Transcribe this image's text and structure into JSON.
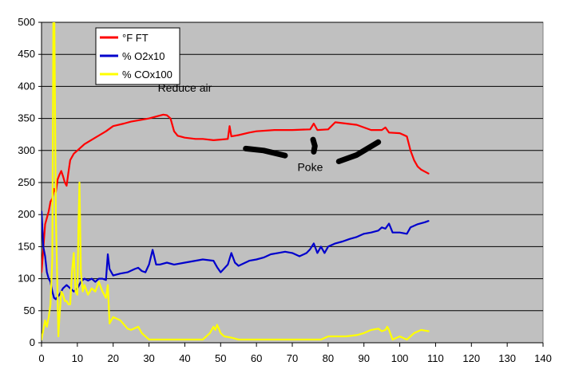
{
  "chart_data": {
    "type": "line",
    "title": "",
    "xlabel": "",
    "ylabel": "",
    "xlim": [
      0,
      140
    ],
    "ylim": [
      0,
      500
    ],
    "xticks": [
      0,
      10,
      20,
      30,
      40,
      50,
      60,
      70,
      80,
      90,
      100,
      110,
      120,
      130,
      140
    ],
    "yticks": [
      0,
      50,
      100,
      150,
      200,
      250,
      300,
      350,
      400,
      450,
      500
    ],
    "grid": {
      "horizontal": true,
      "vertical": false
    },
    "plot_background": "#c0c0c0",
    "legend": {
      "placement": "top-left",
      "box": true
    },
    "annotations": [
      {
        "text": "Reduce air",
        "x": 40,
        "y": 392
      },
      {
        "text": "Poke",
        "x": 75,
        "y": 268
      }
    ],
    "strokes": [
      {
        "color": "#000000",
        "points": [
          [
            57,
            303
          ],
          [
            62,
            300
          ],
          [
            68,
            292
          ]
        ]
      },
      {
        "color": "#000000",
        "points": [
          [
            75.8,
            317
          ],
          [
            76.3,
            307
          ],
          [
            76,
            298
          ]
        ]
      },
      {
        "color": "#000000",
        "points": [
          [
            83,
            283
          ],
          [
            88,
            293
          ],
          [
            94,
            313
          ]
        ]
      }
    ],
    "series": [
      {
        "name": "°F FT",
        "color": "#ff0000",
        "x": [
          0,
          1,
          2,
          2.5,
          3,
          3.5,
          4,
          4.5,
          5,
          5.5,
          6,
          6.5,
          7,
          7.5,
          8,
          9,
          10,
          12,
          15,
          18,
          20,
          23,
          25,
          28,
          30,
          32,
          34,
          35,
          36,
          37,
          38,
          40,
          43,
          45,
          48,
          50,
          52,
          52.5,
          53,
          55,
          58,
          60,
          65,
          70,
          75,
          76,
          77,
          80,
          82,
          85,
          88,
          90,
          92,
          95,
          96,
          97,
          100,
          102,
          103,
          104,
          105,
          106,
          107,
          108
        ],
        "y": [
          110,
          185,
          205,
          220,
          225,
          240,
          235,
          255,
          262,
          268,
          260,
          250,
          245,
          265,
          285,
          295,
          300,
          310,
          320,
          330,
          338,
          342,
          345,
          348,
          350,
          353,
          356,
          355,
          350,
          330,
          323,
          320,
          318,
          318,
          316,
          317,
          318,
          338,
          322,
          324,
          328,
          330,
          332,
          332,
          333,
          342,
          332,
          333,
          344,
          342,
          340,
          336,
          332,
          332,
          336,
          328,
          327,
          322,
          300,
          285,
          275,
          270,
          267,
          264
        ]
      },
      {
        "name": "% O2x10",
        "color": "#0000cc",
        "x": [
          0,
          0.5,
          1,
          1.5,
          2,
          2.5,
          3,
          3.5,
          4,
          5,
          6,
          7,
          8,
          9,
          10,
          11,
          12,
          13,
          14,
          15,
          16,
          17,
          18,
          18.5,
          19,
          20,
          22,
          24,
          26,
          27,
          28,
          29,
          30,
          31,
          32,
          33,
          35,
          37,
          40,
          45,
          48,
          49,
          50,
          52,
          53,
          54,
          55,
          58,
          60,
          62,
          64,
          66,
          68,
          70,
          72,
          74,
          75,
          76,
          77,
          78,
          79,
          80,
          82,
          84,
          86,
          88,
          90,
          92,
          94,
          95,
          96,
          97,
          98,
          100,
          102,
          103,
          105,
          107,
          108
        ],
        "y": [
          205,
          150,
          135,
          110,
          100,
          95,
          80,
          70,
          68,
          75,
          85,
          90,
          85,
          80,
          85,
          95,
          100,
          97,
          100,
          95,
          100,
          100,
          98,
          138,
          115,
          105,
          108,
          110,
          115,
          117,
          112,
          110,
          122,
          145,
          122,
          122,
          125,
          122,
          125,
          130,
          128,
          118,
          110,
          122,
          140,
          125,
          120,
          128,
          130,
          133,
          138,
          140,
          142,
          140,
          135,
          140,
          146,
          155,
          140,
          150,
          140,
          150,
          155,
          158,
          162,
          165,
          170,
          172,
          175,
          180,
          178,
          186,
          172,
          172,
          170,
          180,
          185,
          188,
          190
        ]
      },
      {
        "name": "% COx100",
        "color": "#ffff00",
        "x": [
          0,
          0.5,
          1,
          1.5,
          2,
          2.5,
          3,
          3.3,
          3.6,
          4,
          4.3,
          4.7,
          5,
          5.5,
          6,
          6.5,
          7,
          7.5,
          8,
          8.5,
          9,
          9.5,
          10,
          10.3,
          10.6,
          11,
          11.5,
          12,
          13,
          14,
          15,
          16,
          17,
          18,
          18.5,
          19,
          20,
          22,
          24,
          25,
          27,
          28,
          30,
          35,
          40,
          45,
          47,
          48,
          48.5,
          49,
          49.5,
          50,
          51,
          53,
          55,
          60,
          65,
          70,
          75,
          78,
          80,
          85,
          88,
          90,
          92,
          94,
          95,
          96,
          96.5,
          97,
          98,
          100,
          102,
          104,
          106,
          108
        ],
        "y": [
          5,
          20,
          35,
          25,
          40,
          60,
          130,
          500,
          500,
          200,
          120,
          10,
          40,
          80,
          75,
          65,
          65,
          60,
          60,
          110,
          140,
          80,
          75,
          180,
          250,
          110,
          80,
          90,
          75,
          85,
          80,
          95,
          80,
          70,
          90,
          30,
          40,
          35,
          22,
          20,
          25,
          15,
          5,
          5,
          5,
          5,
          15,
          25,
          20,
          28,
          22,
          15,
          10,
          8,
          5,
          5,
          5,
          5,
          5,
          5,
          10,
          10,
          12,
          15,
          20,
          22,
          18,
          20,
          25,
          20,
          5,
          10,
          5,
          15,
          20,
          18
        ]
      }
    ]
  }
}
